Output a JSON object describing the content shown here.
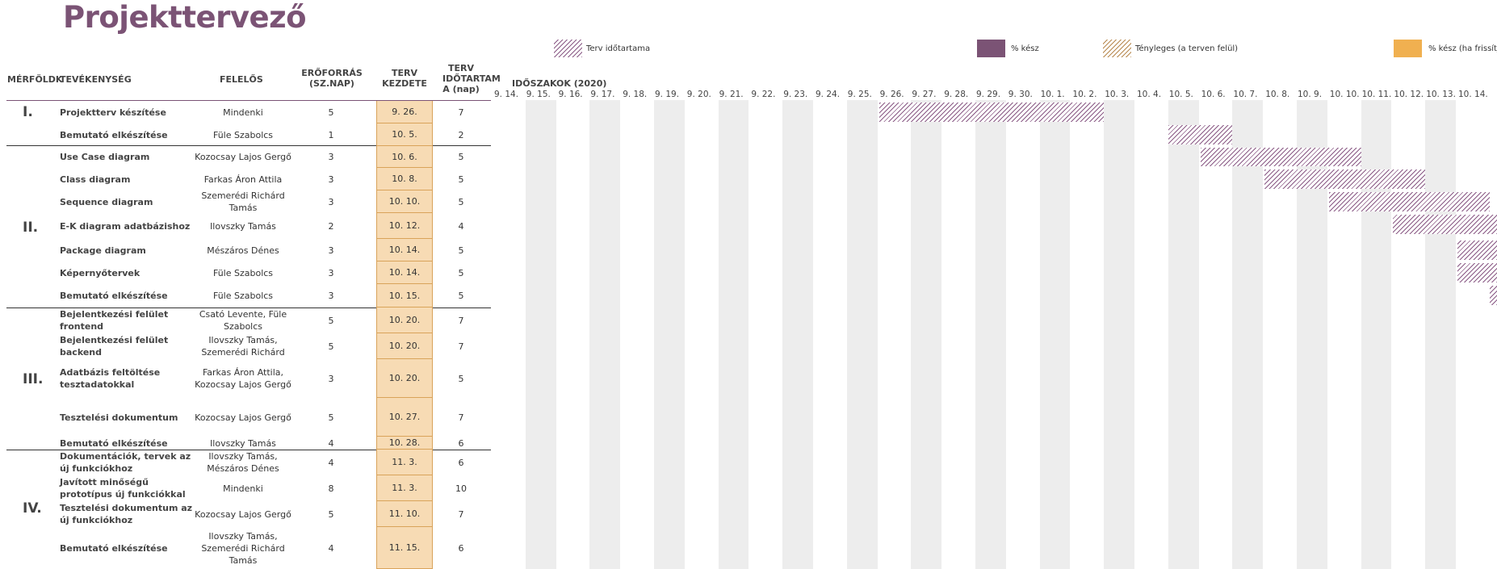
{
  "title": "Projekttervező",
  "legend": {
    "plan": "Terv időtartama",
    "pct": "% kész",
    "actual": "Tényleges (a terven felül)",
    "pct2": "% kész (ha frissítjü"
  },
  "headers": {
    "milestone": "MÉRFÖLDK",
    "activity": "TEVÉKENYSÉG",
    "owner": "FELELŐS",
    "effort": "ERŐFORRÁS\n(SZ.NAP)",
    "start": "TERV\nKEZDETE",
    "duration": "TERV\nIDŐTARTAM\nA (nap)",
    "periods": "IDŐSZAKOK (2020)"
  },
  "dates": [
    "9. 14.",
    "9. 15.",
    "9. 16.",
    "9. 17.",
    "9. 18.",
    "9. 19.",
    "9. 20.",
    "9. 21.",
    "9. 22.",
    "9. 23.",
    "9. 24.",
    "9. 25.",
    "9. 26.",
    "9. 27.",
    "9. 28.",
    "9. 29.",
    "9. 30.",
    "10. 1.",
    "10. 2.",
    "10. 3.",
    "10. 4.",
    "10. 5.",
    "10. 6.",
    "10. 7.",
    "10. 8.",
    "10. 9.",
    "10. 10.",
    "10. 11.",
    "10. 12.",
    "10. 13.",
    "10. 14."
  ],
  "milestones": [
    {
      "label": "I."
    },
    {
      "label": "II."
    },
    {
      "label": "III."
    },
    {
      "label": "IV."
    }
  ],
  "rows": [
    {
      "activity": "Projektterv készítése",
      "owner": "Mindenki",
      "effort": "5",
      "start": "9. 26.",
      "duration": "7"
    },
    {
      "activity": "Bemutató elkészítése",
      "owner": "Füle Szabolcs",
      "effort": "1",
      "start": "10. 5.",
      "duration": "2"
    },
    {
      "activity": "Use Case diagram",
      "owner": "Kozocsay Lajos Gergő",
      "effort": "3",
      "start": "10. 6.",
      "duration": "5"
    },
    {
      "activity": "Class diagram",
      "owner": "Farkas Áron Attila",
      "effort": "3",
      "start": "10. 8.",
      "duration": "5"
    },
    {
      "activity": "Sequence diagram",
      "owner": "Szemerédi Richárd Tamás",
      "effort": "3",
      "start": "10. 10.",
      "duration": "5"
    },
    {
      "activity": "E-K diagram adatbázishoz",
      "owner": "Ilovszky Tamás",
      "effort": "2",
      "start": "10. 12.",
      "duration": "4"
    },
    {
      "activity": "Package diagram",
      "owner": "Mészáros Dénes",
      "effort": "3",
      "start": "10. 14.",
      "duration": "5"
    },
    {
      "activity": "Képernyőtervek",
      "owner": "Füle Szabolcs",
      "effort": "3",
      "start": "10. 14.",
      "duration": "5"
    },
    {
      "activity": "Bemutató elkészítése",
      "owner": "Füle Szabolcs",
      "effort": "3",
      "start": "10. 15.",
      "duration": "5"
    },
    {
      "activity": "Bejelentkezési felület frontend",
      "owner": "Csató Levente, Füle Szabolcs",
      "effort": "5",
      "start": "10. 20.",
      "duration": "7"
    },
    {
      "activity": "Bejelentkezési felület backend",
      "owner": "Ilovszky Tamás, Szemerédi Richárd",
      "effort": "5",
      "start": "10. 20.",
      "duration": "7"
    },
    {
      "activity": "Adatbázis feltöltése tesztadatokkal",
      "owner": "Farkas Áron Attila, Kozocsay Lajos Gergő",
      "effort": "3",
      "start": "10. 20.",
      "duration": "5"
    },
    {
      "activity": "Tesztelési dokumentum",
      "owner": "Kozocsay Lajos Gergő",
      "effort": "5",
      "start": "10. 27.",
      "duration": "7"
    },
    {
      "activity": "Bemutató elkészítése",
      "owner": "Ilovszky Tamás",
      "effort": "4",
      "start": "10. 28.",
      "duration": "6"
    },
    {
      "activity": "Dokumentációk, tervek az új funkciókhoz",
      "owner": "Ilovszky Tamás, Mészáros Dénes",
      "effort": "4",
      "start": "11. 3.",
      "duration": "6"
    },
    {
      "activity": "Javított minőségű prototípus új funkciókkal",
      "owner": "Mindenki",
      "effort": "8",
      "start": "11. 3.",
      "duration": "10"
    },
    {
      "activity": "Tesztelési dokumentum az új funkciókhoz",
      "owner": "Kozocsay Lajos Gergő",
      "effort": "5",
      "start": "11. 10.",
      "duration": "7"
    },
    {
      "activity": "Bemutató elkészítése",
      "owner": "Ilovszky Tamás, Szemerédi Richárd Tamás",
      "effort": "4",
      "start": "11. 15.",
      "duration": "6"
    }
  ],
  "colors": {
    "accent": "#7b5375",
    "start_fill": "#f7dbb4",
    "pct2": "#f0b050"
  }
}
